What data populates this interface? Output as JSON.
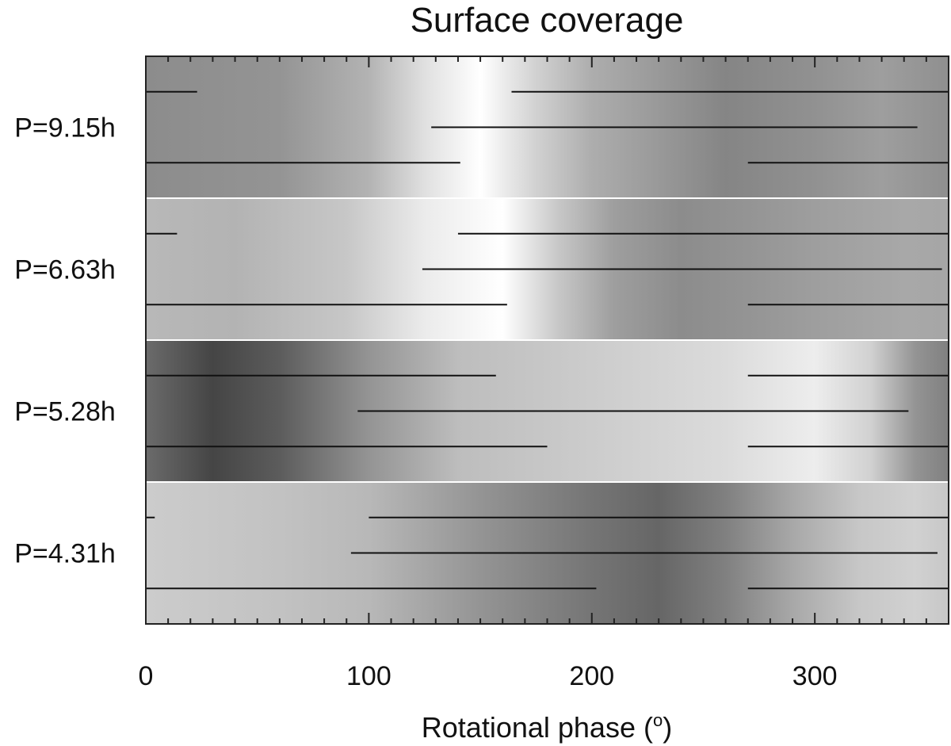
{
  "chart_data": {
    "type": "heatmap",
    "title": "Surface coverage",
    "xlabel_main": "Rotational phase (",
    "xlabel_deg": "o",
    "xlabel_close": ")",
    "ylabel": "",
    "xlim": [
      0,
      360
    ],
    "x_ticks": [
      0,
      100,
      200,
      300
    ],
    "grid": false,
    "legend": "none",
    "gray_brightness_scale": "0 = black, 1 = white",
    "bands": [
      {
        "label": "P=9.15h",
        "brightness_profile": [
          [
            0,
            0.55
          ],
          [
            60,
            0.58
          ],
          [
            100,
            0.7
          ],
          [
            125,
            0.88
          ],
          [
            150,
            1.0
          ],
          [
            175,
            0.82
          ],
          [
            200,
            0.68
          ],
          [
            230,
            0.6
          ],
          [
            260,
            0.52
          ],
          [
            300,
            0.57
          ],
          [
            330,
            0.62
          ],
          [
            360,
            0.56
          ]
        ],
        "segments": [
          [
            [
              0,
              23
            ],
            [
              164,
              360
            ]
          ],
          [
            [
              128,
              346
            ]
          ],
          [
            [
              0,
              141
            ],
            [
              270,
              360
            ]
          ]
        ]
      },
      {
        "label": "P=6.63h",
        "brightness_profile": [
          [
            0,
            0.72
          ],
          [
            40,
            0.7
          ],
          [
            90,
            0.78
          ],
          [
            125,
            0.92
          ],
          [
            160,
            1.0
          ],
          [
            185,
            0.78
          ],
          [
            210,
            0.62
          ],
          [
            240,
            0.55
          ],
          [
            270,
            0.58
          ],
          [
            300,
            0.62
          ],
          [
            340,
            0.66
          ],
          [
            360,
            0.65
          ]
        ],
        "segments": [
          [
            [
              0,
              14
            ],
            [
              140,
              360
            ]
          ],
          [
            [
              124,
              357
            ]
          ],
          [
            [
              0,
              162
            ],
            [
              270,
              360
            ]
          ]
        ]
      },
      {
        "label": "P=5.28h",
        "brightness_profile": [
          [
            0,
            0.42
          ],
          [
            30,
            0.27
          ],
          [
            60,
            0.36
          ],
          [
            100,
            0.58
          ],
          [
            140,
            0.74
          ],
          [
            200,
            0.8
          ],
          [
            260,
            0.86
          ],
          [
            300,
            0.93
          ],
          [
            325,
            0.82
          ],
          [
            345,
            0.58
          ],
          [
            360,
            0.5
          ]
        ],
        "segments": [
          [
            [
              0,
              157
            ],
            [
              270,
              360
            ]
          ],
          [
            [
              95,
              342
            ]
          ],
          [
            [
              0,
              180
            ],
            [
              270,
              360
            ]
          ]
        ]
      },
      {
        "label": "P=4.31h",
        "brightness_profile": [
          [
            0,
            0.8
          ],
          [
            60,
            0.76
          ],
          [
            100,
            0.72
          ],
          [
            150,
            0.58
          ],
          [
            200,
            0.46
          ],
          [
            230,
            0.4
          ],
          [
            260,
            0.5
          ],
          [
            290,
            0.66
          ],
          [
            320,
            0.78
          ],
          [
            345,
            0.82
          ],
          [
            360,
            0.78
          ]
        ],
        "segments": [
          [
            [
              0,
              4
            ],
            [
              100,
              360
            ]
          ],
          [
            [
              92,
              355
            ]
          ],
          [
            [
              0,
              202
            ],
            [
              270,
              360
            ]
          ]
        ]
      }
    ]
  }
}
